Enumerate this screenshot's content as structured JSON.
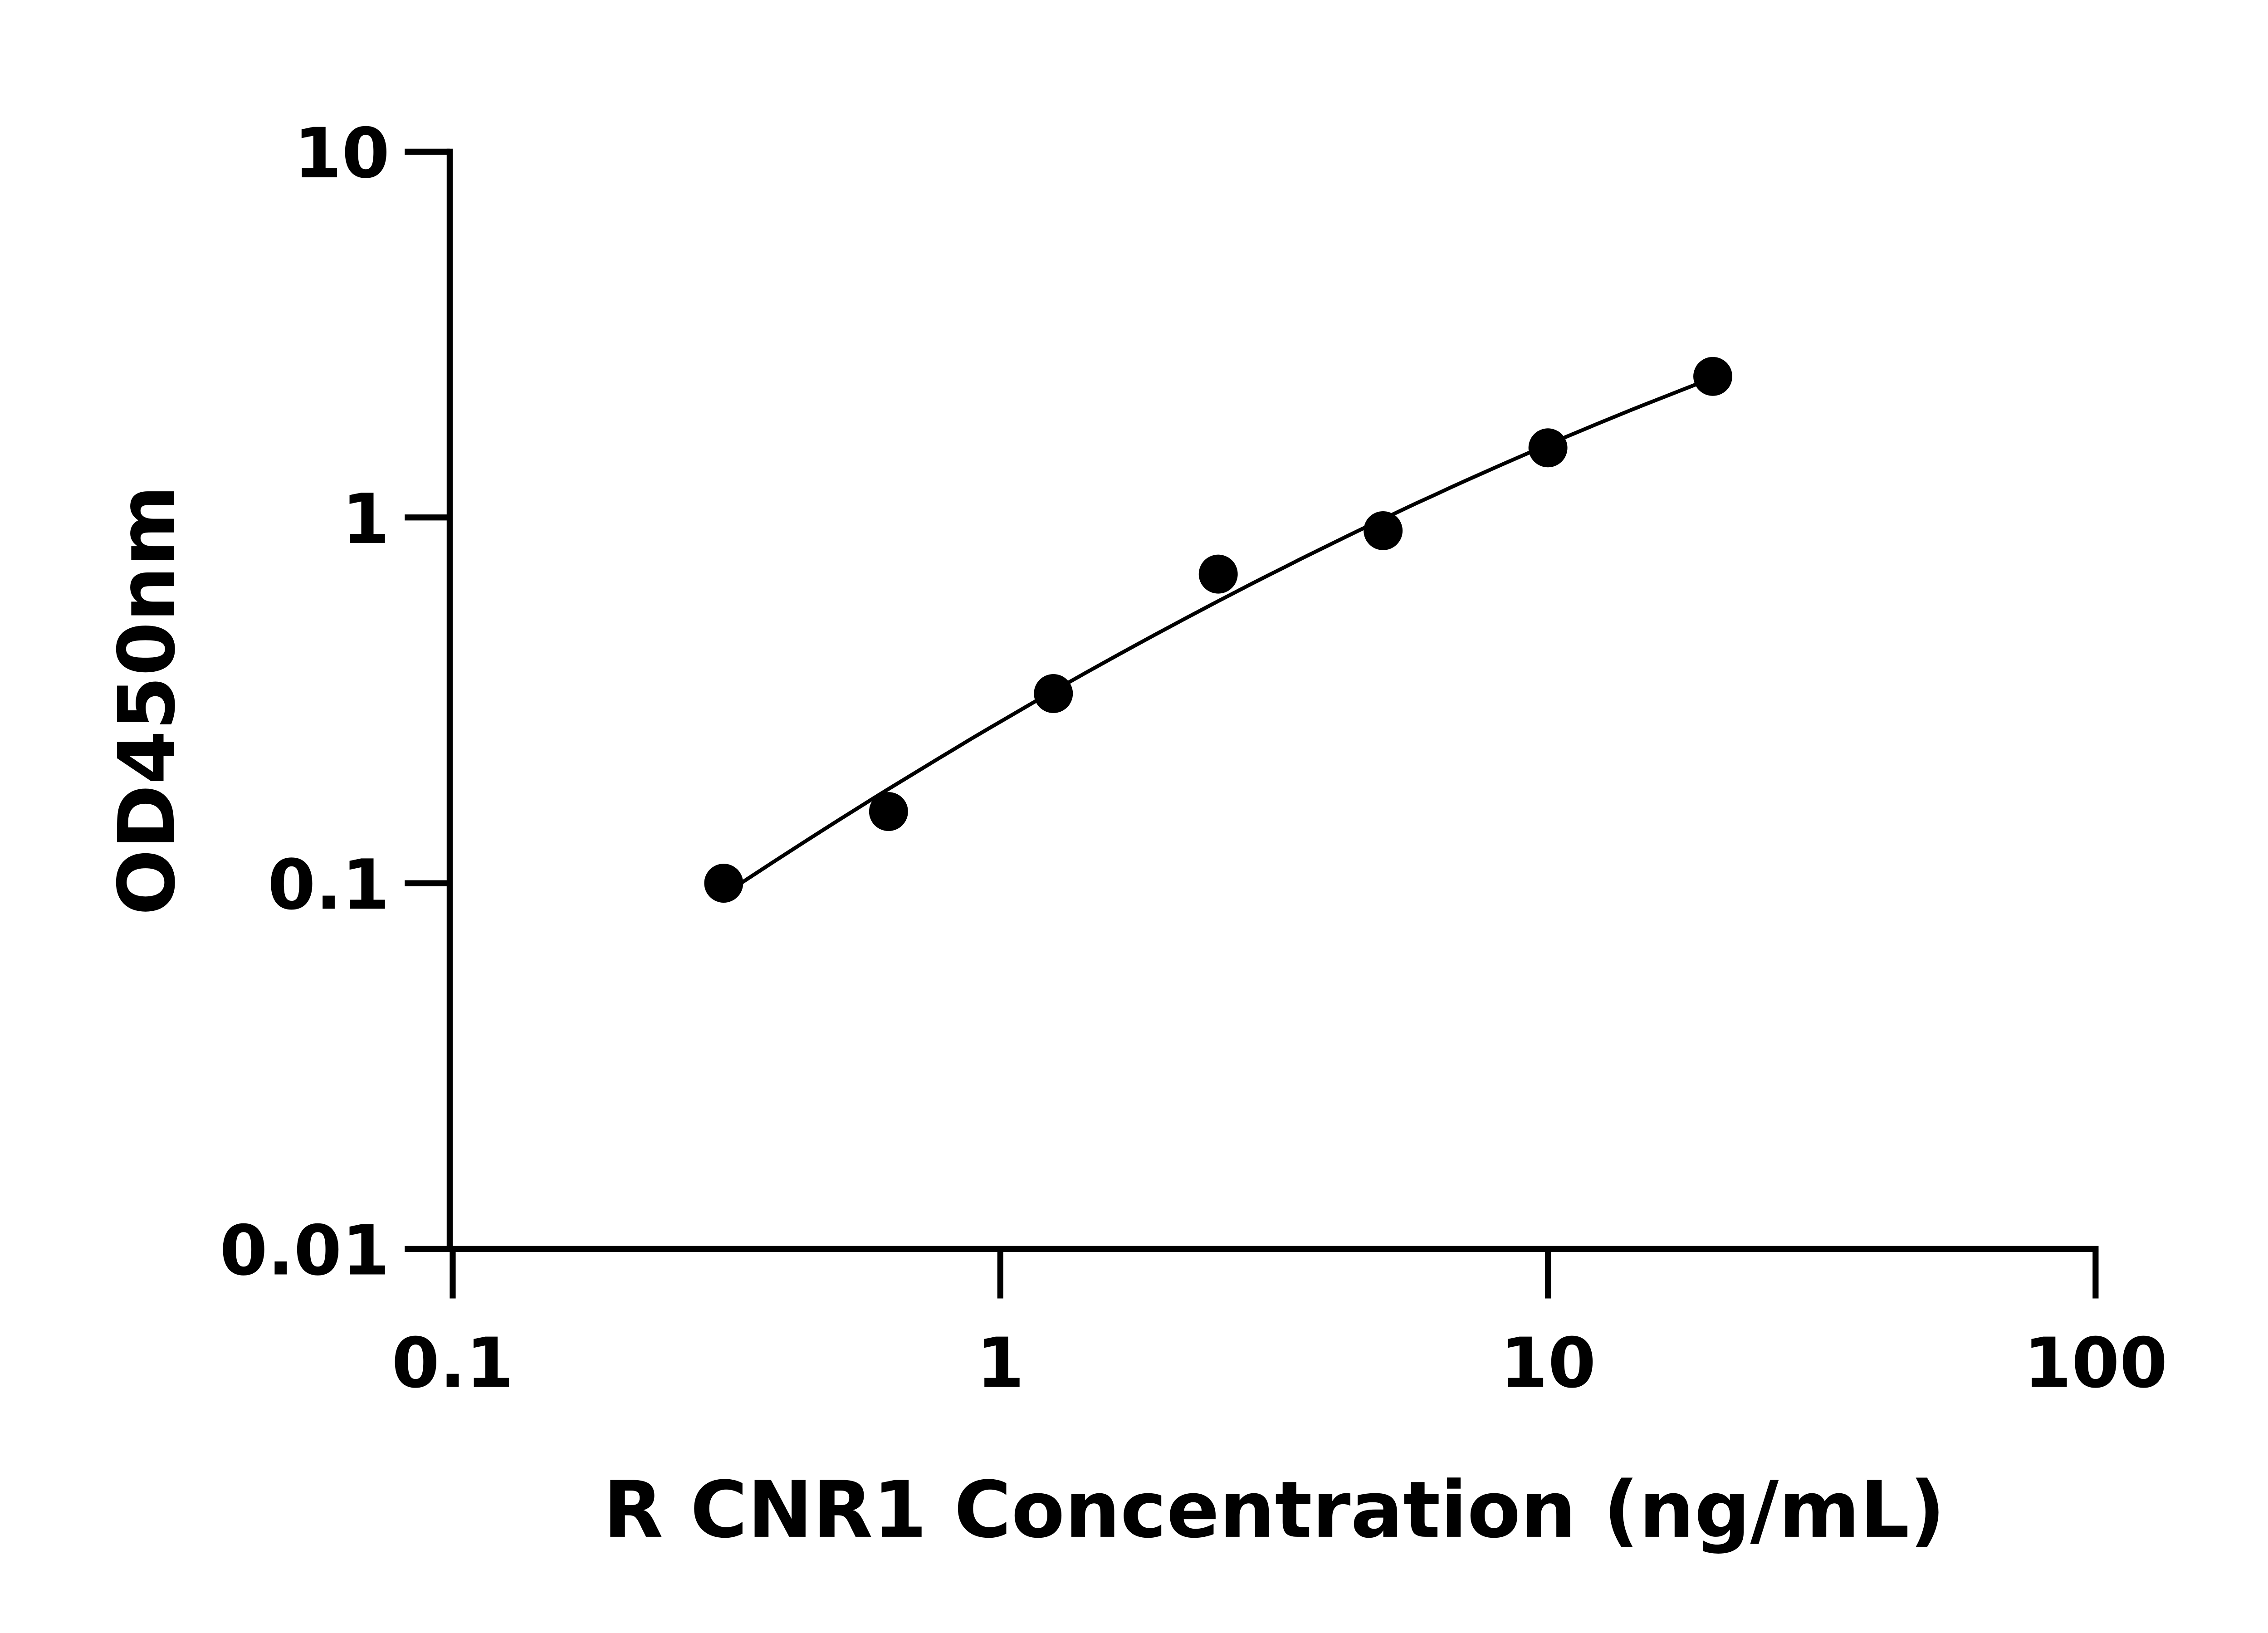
{
  "chart_data": {
    "type": "scatter",
    "title": "",
    "xlabel": "R CNR1 Concentration (ng/mL)",
    "ylabel": "OD450nm",
    "x_scale": "log",
    "y_scale": "log",
    "xlim": [
      0.1,
      100
    ],
    "ylim": [
      0.01,
      10
    ],
    "x_ticks": [
      "0.1",
      "1",
      "10",
      "100"
    ],
    "y_ticks": [
      "0.01",
      "0.1",
      "1",
      "10"
    ],
    "grid": false,
    "fit_line": true,
    "marker_color": "#000000",
    "x": [
      0.3125,
      0.625,
      1.25,
      2.5,
      5,
      10,
      20
    ],
    "y": [
      0.1,
      0.157,
      0.33,
      0.7,
      0.92,
      1.55,
      2.43
    ]
  }
}
